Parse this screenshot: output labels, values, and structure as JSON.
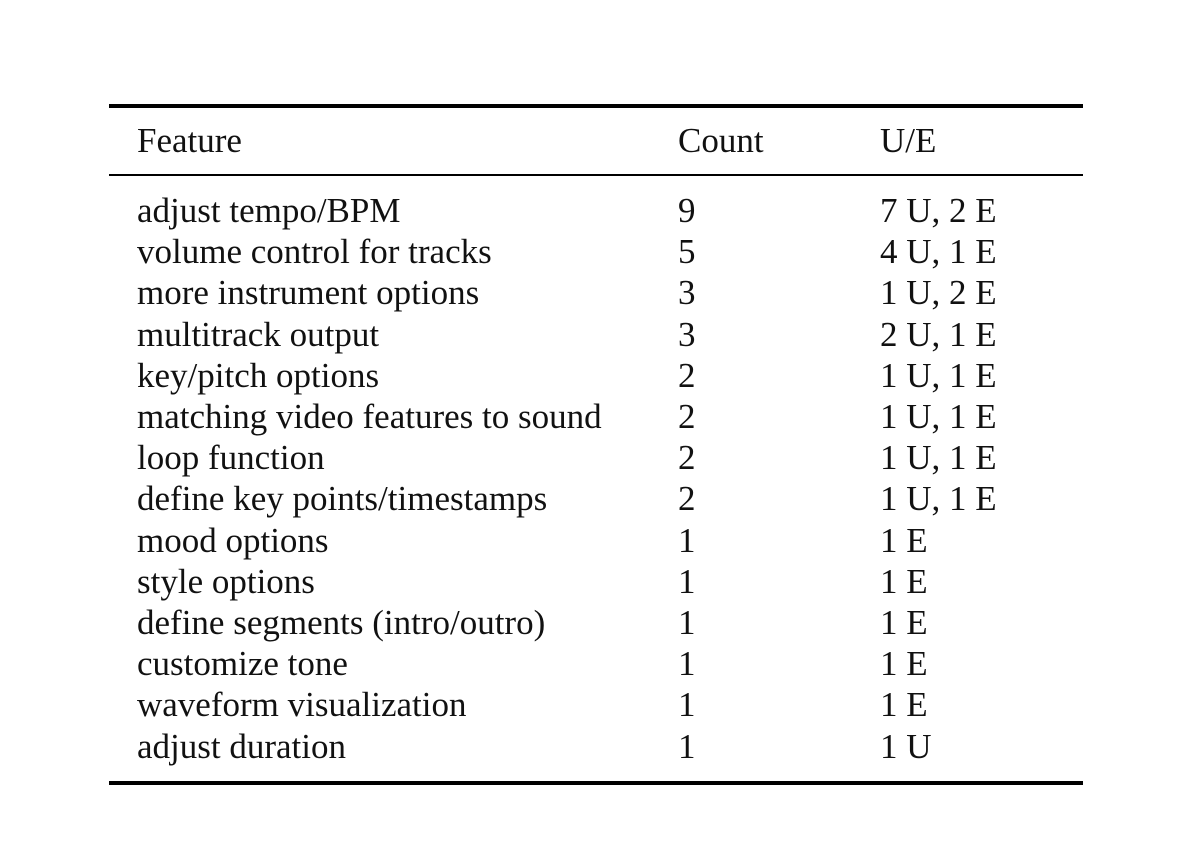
{
  "table": {
    "headers": [
      "Feature",
      "Count",
      "U/E"
    ],
    "rows": [
      [
        "adjust tempo/BPM",
        "9",
        "7 U, 2 E"
      ],
      [
        "volume control for tracks",
        "5",
        "4 U, 1 E"
      ],
      [
        "more instrument options",
        "3",
        "1 U, 2 E"
      ],
      [
        "multitrack output",
        "3",
        "2 U, 1 E"
      ],
      [
        "key/pitch options",
        "2",
        "1 U, 1 E"
      ],
      [
        "matching video features to sound",
        "2",
        "1 U, 1 E"
      ],
      [
        "loop function",
        "2",
        "1 U, 1 E"
      ],
      [
        "define key points/timestamps",
        "2",
        "1 U, 1 E"
      ],
      [
        "mood options",
        "1",
        "1 E"
      ],
      [
        "style options",
        "1",
        "1 E"
      ],
      [
        "define segments (intro/outro)",
        "1",
        "1 E"
      ],
      [
        "customize tone",
        "1",
        "1 E"
      ],
      [
        "waveform visualization",
        "1",
        "1 E"
      ],
      [
        "adjust duration",
        "1",
        "1 U"
      ]
    ]
  }
}
